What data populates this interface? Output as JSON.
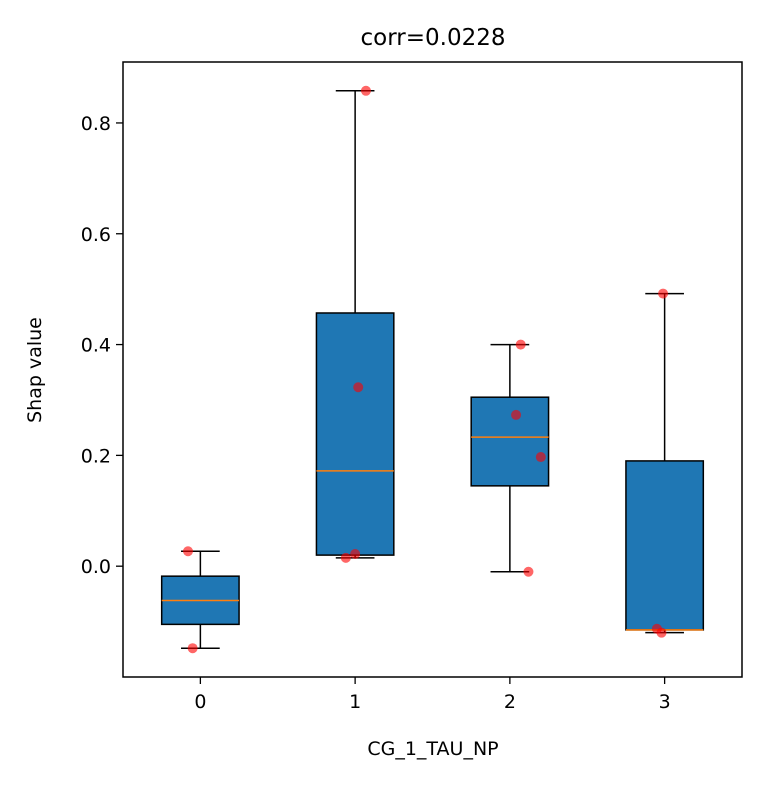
{
  "chart_data": {
    "type": "box",
    "title": "corr=0.0228",
    "xlabel": "CG_1_TAU_NP",
    "ylabel": "Shap value",
    "categories": [
      "0",
      "1",
      "2",
      "3"
    ],
    "x_ticks": [
      "0",
      "1",
      "2",
      "3"
    ],
    "y_ticks": [
      "0.0",
      "0.2",
      "0.4",
      "0.6",
      "0.8"
    ],
    "y_tick_values": [
      0.0,
      0.2,
      0.4,
      0.6,
      0.8
    ],
    "xlim": [
      -0.5,
      3.5
    ],
    "ylim": [
      -0.2,
      0.91
    ],
    "grid": false,
    "box_color": "#1f77b4",
    "median_color": "#ff7f0e",
    "point_color": "#ff0000",
    "boxes": [
      {
        "category": "0",
        "whisker_low": -0.148,
        "q1": -0.105,
        "median": -0.062,
        "q3": -0.018,
        "whisker_high": 0.027
      },
      {
        "category": "1",
        "whisker_low": 0.015,
        "q1": 0.02,
        "median": 0.172,
        "q3": 0.457,
        "whisker_high": 0.858
      },
      {
        "category": "2",
        "whisker_low": -0.01,
        "q1": 0.145,
        "median": 0.233,
        "q3": 0.305,
        "whisker_high": 0.4
      },
      {
        "category": "3",
        "whisker_low": -0.12,
        "q1": -0.115,
        "median": -0.115,
        "q3": 0.19,
        "whisker_high": 0.492
      }
    ],
    "points": [
      {
        "x": -0.08,
        "y": 0.027
      },
      {
        "x": -0.05,
        "y": -0.148
      },
      {
        "x": 0.94,
        "y": 0.015
      },
      {
        "x": 1.0,
        "y": 0.022
      },
      {
        "x": 1.02,
        "y": 0.323
      },
      {
        "x": 1.07,
        "y": 0.858
      },
      {
        "x": 2.04,
        "y": 0.273
      },
      {
        "x": 2.07,
        "y": 0.4
      },
      {
        "x": 2.12,
        "y": -0.01
      },
      {
        "x": 2.2,
        "y": 0.197
      },
      {
        "x": 2.95,
        "y": -0.113
      },
      {
        "x": 2.98,
        "y": -0.12
      },
      {
        "x": 2.99,
        "y": 0.492
      }
    ]
  }
}
